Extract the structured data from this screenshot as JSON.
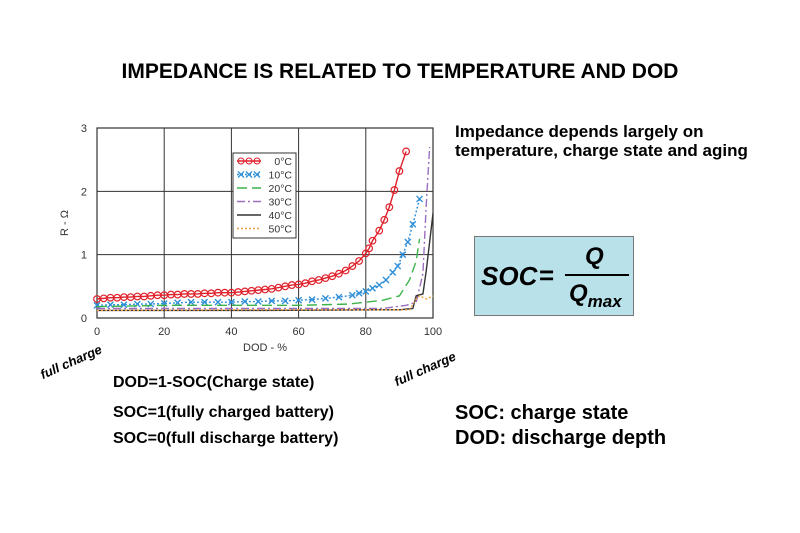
{
  "title": "IMPEDANCE IS RELATED TO TEMPERATURE AND DOD",
  "description": "Impedance depends largely on temperature, charge state and aging",
  "formula": {
    "lhs": "SOC",
    "eq": "=",
    "numerator": "Q",
    "denominator": "Q",
    "denominator_sub": "max"
  },
  "annotations": {
    "left": "full charge",
    "right": "full charge"
  },
  "notes": [
    "DOD=1-SOC(Charge state)",
    "SOC=1(fully charged battery)",
    "SOC=0(full discharge battery)"
  ],
  "definitions": [
    "SOC: charge state",
    "DOD: discharge depth"
  ],
  "chart_data": {
    "type": "line",
    "xlabel": "DOD - %",
    "ylabel": "R - Ω",
    "xlim": [
      0,
      100
    ],
    "ylim": [
      0,
      3
    ],
    "xticks": [
      0,
      20,
      40,
      60,
      80,
      100
    ],
    "yticks": [
      0,
      1,
      2,
      3
    ],
    "grid": true,
    "legend_position": "top-center",
    "series": [
      {
        "name": "0°C",
        "color": "#e0202a",
        "style": "solid-circle",
        "points": [
          [
            0,
            0.3
          ],
          [
            2,
            0.31
          ],
          [
            4,
            0.32
          ],
          [
            6,
            0.32
          ],
          [
            8,
            0.33
          ],
          [
            10,
            0.33
          ],
          [
            12,
            0.34
          ],
          [
            14,
            0.34
          ],
          [
            16,
            0.35
          ],
          [
            18,
            0.36
          ],
          [
            20,
            0.36
          ],
          [
            22,
            0.37
          ],
          [
            24,
            0.37
          ],
          [
            26,
            0.38
          ],
          [
            28,
            0.38
          ],
          [
            30,
            0.38
          ],
          [
            32,
            0.39
          ],
          [
            34,
            0.39
          ],
          [
            36,
            0.4
          ],
          [
            38,
            0.4
          ],
          [
            40,
            0.4
          ],
          [
            42,
            0.41
          ],
          [
            44,
            0.42
          ],
          [
            46,
            0.43
          ],
          [
            48,
            0.44
          ],
          [
            50,
            0.45
          ],
          [
            52,
            0.46
          ],
          [
            54,
            0.48
          ],
          [
            56,
            0.5
          ],
          [
            58,
            0.52
          ],
          [
            60,
            0.53
          ],
          [
            62,
            0.55
          ],
          [
            64,
            0.58
          ],
          [
            66,
            0.6
          ],
          [
            68,
            0.63
          ],
          [
            70,
            0.66
          ],
          [
            72,
            0.7
          ],
          [
            74,
            0.75
          ],
          [
            76,
            0.82
          ],
          [
            78,
            0.9
          ],
          [
            80,
            1.02
          ],
          [
            81,
            1.1
          ],
          [
            82,
            1.22
          ],
          [
            84,
            1.38
          ],
          [
            85.5,
            1.55
          ],
          [
            87,
            1.75
          ],
          [
            88.5,
            2.02
          ],
          [
            90,
            2.32
          ],
          [
            92,
            2.63
          ]
        ]
      },
      {
        "name": "10°C",
        "color": "#2f8fd8",
        "style": "dotted-x",
        "points": [
          [
            0,
            0.2
          ],
          [
            4,
            0.21
          ],
          [
            8,
            0.21
          ],
          [
            12,
            0.22
          ],
          [
            16,
            0.22
          ],
          [
            20,
            0.23
          ],
          [
            24,
            0.24
          ],
          [
            28,
            0.25
          ],
          [
            32,
            0.25
          ],
          [
            36,
            0.25
          ],
          [
            40,
            0.25
          ],
          [
            44,
            0.26
          ],
          [
            48,
            0.26
          ],
          [
            52,
            0.27
          ],
          [
            56,
            0.27
          ],
          [
            60,
            0.28
          ],
          [
            64,
            0.29
          ],
          [
            68,
            0.31
          ],
          [
            72,
            0.33
          ],
          [
            76,
            0.36
          ],
          [
            78,
            0.39
          ],
          [
            80,
            0.42
          ],
          [
            82,
            0.47
          ],
          [
            84,
            0.52
          ],
          [
            86,
            0.6
          ],
          [
            88,
            0.72
          ],
          [
            89.5,
            0.82
          ],
          [
            91,
            1.0
          ],
          [
            92.5,
            1.2
          ],
          [
            94,
            1.48
          ],
          [
            96,
            1.88
          ]
        ]
      },
      {
        "name": "20°C",
        "color": "#3cb44b",
        "style": "dashed",
        "points": [
          [
            0,
            0.18
          ],
          [
            20,
            0.2
          ],
          [
            40,
            0.2
          ],
          [
            60,
            0.2
          ],
          [
            75,
            0.22
          ],
          [
            85,
            0.28
          ],
          [
            90,
            0.35
          ],
          [
            93,
            0.6
          ],
          [
            95,
            0.9
          ],
          [
            96,
            1.25
          ]
        ]
      },
      {
        "name": "30°C",
        "color": "#9b6fc0",
        "style": "dashdot",
        "points": [
          [
            0,
            0.15
          ],
          [
            30,
            0.15
          ],
          [
            60,
            0.15
          ],
          [
            85,
            0.15
          ],
          [
            92,
            0.2
          ],
          [
            95,
            0.25
          ],
          [
            97,
            0.7
          ],
          [
            98,
            1.8
          ],
          [
            99,
            2.7
          ]
        ]
      },
      {
        "name": "40°C",
        "color": "#333333",
        "style": "solid",
        "points": [
          [
            0,
            0.12
          ],
          [
            50,
            0.12
          ],
          [
            90,
            0.13
          ],
          [
            94,
            0.15
          ],
          [
            95,
            0.35
          ],
          [
            97,
            0.38
          ],
          [
            98,
            0.75
          ],
          [
            100,
            1.65
          ]
        ]
      },
      {
        "name": "50°C",
        "color": "#f0a040",
        "style": "dotted",
        "points": [
          [
            0,
            0.12
          ],
          [
            50,
            0.13
          ],
          [
            93,
            0.13
          ],
          [
            95,
            0.3
          ],
          [
            96,
            0.35
          ],
          [
            98,
            0.3
          ],
          [
            100,
            0.35
          ]
        ]
      }
    ]
  }
}
